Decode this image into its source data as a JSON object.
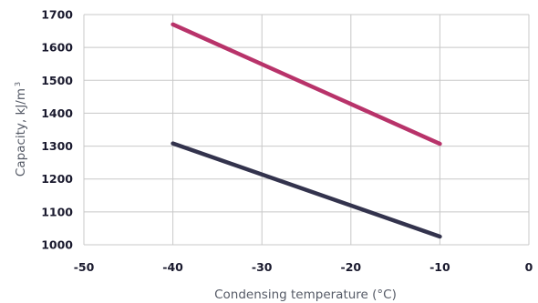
{
  "chart_data": {
    "type": "line",
    "xlabel": "Condensing temperature (°C)",
    "ylabel": "Capacity, kJ/m",
    "ylabel_superscript": "3",
    "xlim": [
      -50,
      0
    ],
    "ylim": [
      1000,
      1700
    ],
    "x_ticks": [
      "-50",
      "-40",
      "-30",
      "-20",
      "-10",
      "0"
    ],
    "y_ticks": [
      "1000",
      "1100",
      "1200",
      "1300",
      "1400",
      "1500",
      "1600",
      "1700"
    ],
    "grid": true,
    "series": [
      {
        "color": "#b8336a",
        "x": [
          -40,
          -10
        ],
        "y": [
          1670,
          1307
        ]
      },
      {
        "color": "#33334d",
        "x": [
          -40,
          -10
        ],
        "y": [
          1308,
          1025
        ]
      }
    ]
  },
  "colors": {
    "grid": "#c8c8c8",
    "tick_text": "#1a1a2e",
    "axis_label_text": "#555a66"
  }
}
